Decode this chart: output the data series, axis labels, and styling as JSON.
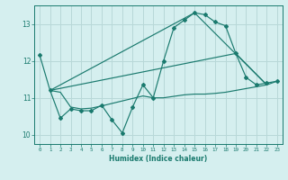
{
  "xlabel": "Humidex (Indice chaleur)",
  "bg_color": "#d5efef",
  "grid_color": "#b8d8d8",
  "line_color": "#1a7a6e",
  "xlim": [
    -0.5,
    23.5
  ],
  "ylim": [
    9.75,
    13.5
  ],
  "yticks": [
    10,
    11,
    12,
    13
  ],
  "xticks": [
    0,
    1,
    2,
    3,
    4,
    5,
    6,
    7,
    8,
    9,
    10,
    11,
    12,
    13,
    14,
    15,
    16,
    17,
    18,
    19,
    20,
    21,
    22,
    23
  ],
  "line1_x": [
    0,
    1,
    2,
    3,
    4,
    5,
    6,
    7,
    8,
    9,
    10,
    11,
    12,
    13,
    14,
    15,
    16,
    17,
    18,
    19,
    20,
    21,
    22,
    23
  ],
  "line1_y": [
    12.15,
    11.2,
    10.45,
    10.7,
    10.65,
    10.65,
    10.8,
    10.4,
    10.05,
    10.75,
    11.35,
    11.0,
    12.0,
    12.9,
    13.1,
    13.3,
    13.25,
    13.05,
    12.95,
    12.2,
    11.55,
    11.35,
    11.4,
    11.45
  ],
  "line2_x": [
    1,
    2,
    3,
    4,
    5,
    6,
    10,
    11,
    12,
    14,
    15,
    16,
    17,
    18,
    19,
    21,
    22,
    23
  ],
  "line2_y": [
    11.2,
    11.15,
    10.75,
    10.7,
    10.72,
    10.78,
    11.05,
    11.0,
    11.0,
    11.08,
    11.1,
    11.1,
    11.12,
    11.15,
    11.2,
    11.3,
    11.35,
    11.45
  ],
  "line3_x": [
    1,
    15,
    22
  ],
  "line3_y": [
    11.2,
    13.3,
    11.35
  ],
  "line4_x": [
    1,
    19,
    22
  ],
  "line4_y": [
    11.2,
    12.2,
    11.35
  ],
  "marker_x": [
    0,
    1,
    2,
    3,
    4,
    5,
    6,
    7,
    8,
    9,
    10,
    11,
    12,
    13,
    14,
    15,
    16,
    17,
    18,
    19,
    20,
    21,
    22,
    23
  ],
  "marker_y": [
    12.15,
    11.2,
    10.45,
    10.7,
    10.65,
    10.65,
    10.8,
    10.4,
    10.05,
    10.75,
    11.35,
    11.0,
    12.0,
    12.9,
    13.1,
    13.3,
    13.25,
    13.05,
    12.95,
    12.2,
    11.55,
    11.35,
    11.4,
    11.45
  ]
}
